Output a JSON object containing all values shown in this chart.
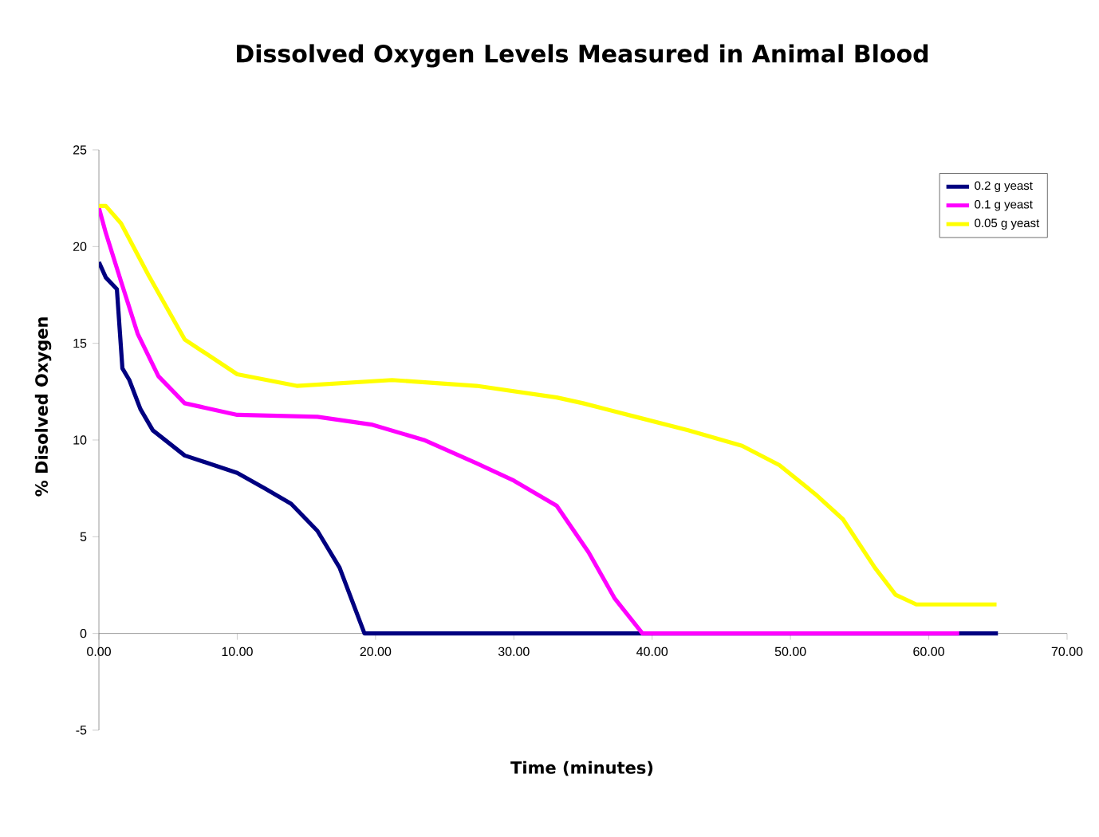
{
  "chart_data": {
    "type": "line",
    "title": "Dissolved Oxygen Levels Measured in Animal Blood",
    "xlabel": "Time (minutes)",
    "ylabel": "% Disolved Oxygen",
    "xlim": [
      0,
      70
    ],
    "ylim": [
      -5,
      25
    ],
    "xticks": [
      {
        "value": 0,
        "label": "0.00"
      },
      {
        "value": 10,
        "label": "10.00"
      },
      {
        "value": 20,
        "label": "20.00"
      },
      {
        "value": 30,
        "label": "30.00"
      },
      {
        "value": 40,
        "label": "40.00"
      },
      {
        "value": 50,
        "label": "50.00"
      },
      {
        "value": 60,
        "label": "60.00"
      },
      {
        "value": 70,
        "label": "70.00"
      }
    ],
    "yticks": [
      -5,
      0,
      5,
      10,
      15,
      20,
      25
    ],
    "grid": false,
    "legend": "top right",
    "marker": "none",
    "line_style": "solid",
    "series": [
      {
        "name": "0.2 g yeast",
        "color": "#000080",
        "x": [
          0,
          0.5,
          1.3,
          1.7,
          2.2,
          3,
          3.9,
          6.2,
          10,
          12,
          13.9,
          15.8,
          17.4,
          19.2,
          65
        ],
        "values": [
          19.2,
          18.4,
          17.8,
          13.7,
          13.1,
          11.6,
          10.5,
          9.2,
          8.3,
          7.5,
          6.7,
          5.3,
          3.4,
          0,
          0
        ]
      },
      {
        "name": "0.1 g yeast",
        "color": "#ff00ff",
        "x": [
          0,
          0.5,
          1.6,
          2.8,
          4.3,
          6.2,
          10,
          15.8,
          19.7,
          23.5,
          27.3,
          30,
          33.1,
          35.4,
          37.3,
          39.3,
          62.2
        ],
        "values": [
          22,
          20.7,
          18.2,
          15.5,
          13.3,
          11.9,
          11.3,
          11.2,
          10.8,
          10,
          8.8,
          7.9,
          6.6,
          4.2,
          1.8,
          0,
          0
        ]
      },
      {
        "name": "0.05 g yeast",
        "color": "#ffff00",
        "x": [
          0,
          0.5,
          1.6,
          3.6,
          6.2,
          10,
          14.3,
          21.2,
          27.3,
          33.1,
          35,
          38.8,
          42.6,
          46.5,
          49.2,
          51.8,
          53.8,
          56.1,
          57.6,
          59.1,
          64.9
        ],
        "values": [
          22.1,
          22.1,
          21.2,
          18.5,
          15.2,
          13.4,
          12.8,
          13.1,
          12.8,
          12.2,
          11.9,
          11.2,
          10.5,
          9.7,
          8.7,
          7.2,
          5.9,
          3.4,
          2,
          1.5,
          1.5
        ]
      }
    ]
  }
}
